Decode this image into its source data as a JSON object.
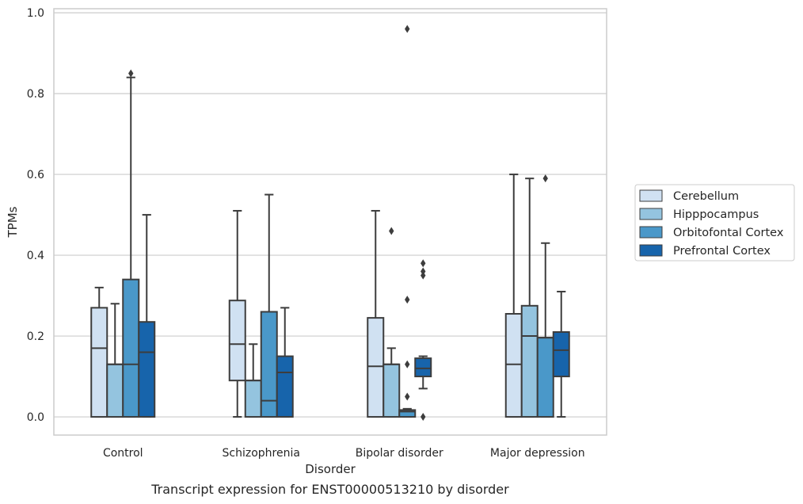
{
  "chart_data": {
    "type": "box",
    "xlabel": "Disorder",
    "ylabel": "TPMs",
    "caption": "Transcript expression for ENST00000513210 by disorder",
    "ylim": [
      -0.045,
      1.01
    ],
    "yticks": [
      0.0,
      0.2,
      0.4,
      0.6,
      0.8,
      1.0
    ],
    "ytick_labels": [
      "0.0",
      "0.2",
      "0.4",
      "0.6",
      "0.8",
      "1.0"
    ],
    "grid": "horizontal",
    "legend_position": "right",
    "categories": [
      "Control",
      "Schizophrenia",
      "Bipolar disorder",
      "Major depression"
    ],
    "series": [
      {
        "name": "Cerebellum",
        "color": "#d0e1f2",
        "boxes": [
          {
            "whislo": 0.0,
            "q1": 0.0,
            "med": 0.17,
            "q3": 0.27,
            "whishi": 0.32,
            "fliers": []
          },
          {
            "whislo": 0.0,
            "q1": 0.09,
            "med": 0.18,
            "q3": 0.288,
            "whishi": 0.51,
            "fliers": []
          },
          {
            "whislo": 0.0,
            "q1": 0.0,
            "med": 0.125,
            "q3": 0.245,
            "whishi": 0.51,
            "fliers": []
          },
          {
            "whislo": 0.0,
            "q1": 0.0,
            "med": 0.13,
            "q3": 0.255,
            "whishi": 0.6,
            "fliers": []
          }
        ]
      },
      {
        "name": "Hipppocampus",
        "color": "#94c4df",
        "boxes": [
          {
            "whislo": 0.0,
            "q1": 0.0,
            "med": 0.13,
            "q3": 0.13,
            "whishi": 0.28,
            "fliers": []
          },
          {
            "whislo": 0.0,
            "q1": 0.0,
            "med": 0.09,
            "q3": 0.09,
            "whishi": 0.18,
            "fliers": []
          },
          {
            "whislo": 0.0,
            "q1": 0.0,
            "med": 0.13,
            "q3": 0.13,
            "whishi": 0.17,
            "fliers": [
              0.46
            ]
          },
          {
            "whislo": 0.0,
            "q1": 0.0,
            "med": 0.2,
            "q3": 0.275,
            "whishi": 0.59,
            "fliers": []
          }
        ]
      },
      {
        "name": "Orbitofontal Cortex",
        "color": "#4a98c9",
        "boxes": [
          {
            "whislo": 0.0,
            "q1": 0.0,
            "med": 0.13,
            "q3": 0.34,
            "whishi": 0.84,
            "fliers": [
              0.85
            ]
          },
          {
            "whislo": 0.0,
            "q1": 0.0,
            "med": 0.04,
            "q3": 0.26,
            "whishi": 0.55,
            "fliers": []
          },
          {
            "whislo": 0.0,
            "q1": 0.0,
            "med": 0.013,
            "q3": 0.017,
            "whishi": 0.02,
            "fliers": [
              0.96,
              0.29,
              0.13,
              0.05
            ]
          },
          {
            "whislo": 0.0,
            "q1": 0.0,
            "med": 0.196,
            "q3": 0.196,
            "whishi": 0.43,
            "fliers": [
              0.59
            ]
          }
        ]
      },
      {
        "name": "Prefrontal Cortex",
        "color": "#1764ab",
        "boxes": [
          {
            "whislo": 0.0,
            "q1": 0.0,
            "med": 0.16,
            "q3": 0.235,
            "whishi": 0.5,
            "fliers": []
          },
          {
            "whislo": 0.0,
            "q1": 0.0,
            "med": 0.11,
            "q3": 0.15,
            "whishi": 0.27,
            "fliers": []
          },
          {
            "whislo": 0.07,
            "q1": 0.1,
            "med": 0.12,
            "q3": 0.145,
            "whishi": 0.15,
            "fliers": [
              0.38,
              0.36,
              0.35,
              0.0
            ]
          },
          {
            "whislo": 0.0,
            "q1": 0.1,
            "med": 0.165,
            "q3": 0.21,
            "whishi": 0.31,
            "fliers": []
          }
        ]
      }
    ]
  }
}
